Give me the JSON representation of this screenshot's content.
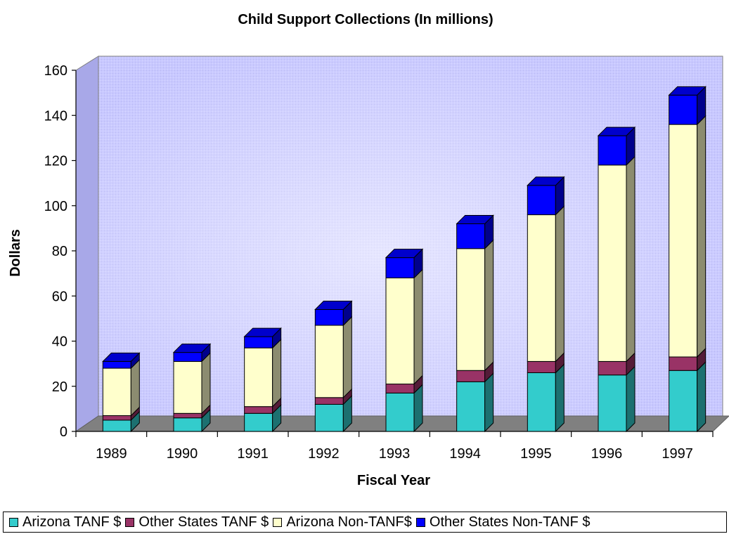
{
  "chart_data": {
    "type": "bar",
    "stacked": true,
    "title": "Child Support Collections (In millions)",
    "xlabel": "Fiscal Year",
    "ylabel": "Dollars",
    "ylim": [
      0,
      160
    ],
    "yticks": [
      0,
      20,
      40,
      60,
      80,
      100,
      120,
      140,
      160
    ],
    "categories": [
      "1989",
      "1990",
      "1991",
      "1992",
      "1993",
      "1994",
      "1995",
      "1996",
      "1997"
    ],
    "series": [
      {
        "name": "Arizona TANF $",
        "color": "#33cccc",
        "values": [
          5,
          6,
          8,
          12,
          17,
          22,
          26,
          25,
          27
        ]
      },
      {
        "name": "Other States TANF $",
        "color": "#993366",
        "values": [
          2,
          2,
          3,
          3,
          4,
          5,
          5,
          6,
          6
        ]
      },
      {
        "name": "Arizona Non-TANF$",
        "color": "#ffffcc",
        "values": [
          21,
          23,
          26,
          32,
          47,
          54,
          65,
          87,
          103
        ]
      },
      {
        "name": "Other States Non-TANF $",
        "color": "#0000ff",
        "values": [
          3,
          4,
          5,
          7,
          9,
          11,
          13,
          13,
          13
        ]
      }
    ],
    "grid": false,
    "legend_position": "bottom"
  }
}
